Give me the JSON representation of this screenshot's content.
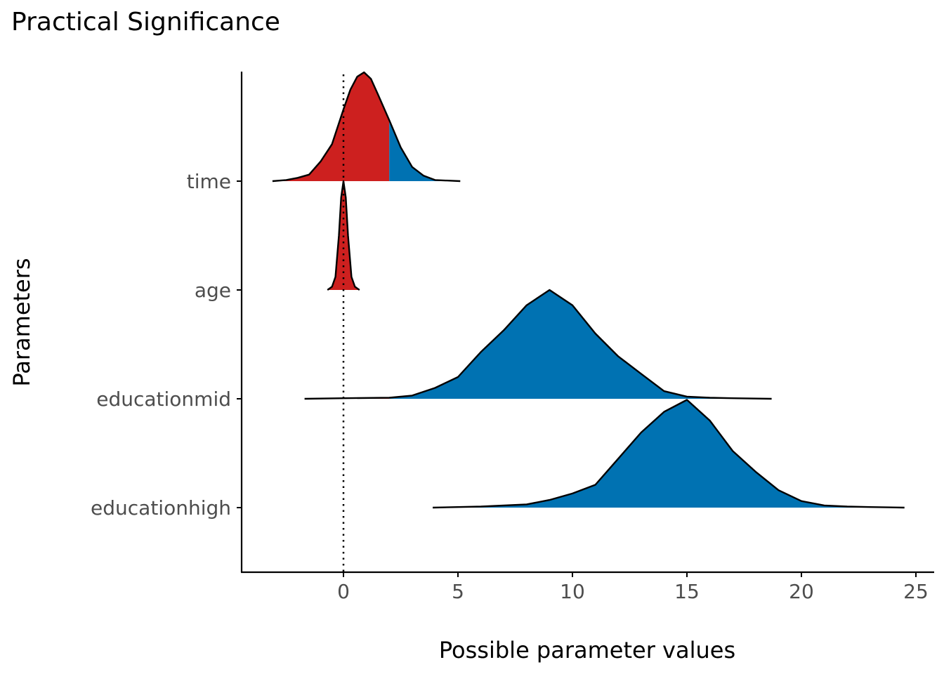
{
  "chart_data": {
    "type": "ridgeline",
    "title": "Practical Significance",
    "xlabel": "Possible parameter values",
    "ylabel": "Parameters",
    "xlim": [
      -4.5,
      25.8
    ],
    "x_ticks": [
      0,
      5,
      10,
      15,
      20,
      25
    ],
    "reference_line": {
      "x": 0,
      "style": "dotted"
    },
    "grid": false,
    "legend": "none",
    "fill_colors": {
      "within_rope": "#cd201f",
      "significant": "#0072b2"
    },
    "series": [
      {
        "name": "time",
        "fill_threshold": 2,
        "density": [
          [
            -3.1,
            0
          ],
          [
            -2.5,
            0.01
          ],
          [
            -2,
            0.03
          ],
          [
            -1.5,
            0.06
          ],
          [
            -1,
            0.18
          ],
          [
            -0.5,
            0.34
          ],
          [
            0,
            0.66
          ],
          [
            0.3,
            0.84
          ],
          [
            0.6,
            0.96
          ],
          [
            0.9,
            1.0
          ],
          [
            1.2,
            0.94
          ],
          [
            1.5,
            0.8
          ],
          [
            2,
            0.56
          ],
          [
            2.5,
            0.31
          ],
          [
            3,
            0.13
          ],
          [
            3.5,
            0.05
          ],
          [
            4,
            0.01
          ],
          [
            5.1,
            0
          ]
        ]
      },
      {
        "name": "age",
        "fill_threshold": 2,
        "density": [
          [
            -0.7,
            0
          ],
          [
            -0.5,
            0.03
          ],
          [
            -0.35,
            0.12
          ],
          [
            -0.2,
            0.5
          ],
          [
            -0.1,
            0.85
          ],
          [
            0,
            1.0
          ],
          [
            0.1,
            0.85
          ],
          [
            0.2,
            0.5
          ],
          [
            0.35,
            0.12
          ],
          [
            0.5,
            0.03
          ],
          [
            0.7,
            0
          ]
        ]
      },
      {
        "name": "educationmid",
        "fill_threshold": 2,
        "density": [
          [
            -1.7,
            0
          ],
          [
            0,
            0.005
          ],
          [
            2,
            0.01
          ],
          [
            3,
            0.03
          ],
          [
            4,
            0.1
          ],
          [
            5,
            0.2
          ],
          [
            6,
            0.43
          ],
          [
            7,
            0.63
          ],
          [
            8,
            0.86
          ],
          [
            9,
            1.0
          ],
          [
            10,
            0.86
          ],
          [
            11,
            0.6
          ],
          [
            12,
            0.39
          ],
          [
            13,
            0.23
          ],
          [
            14,
            0.07
          ],
          [
            15,
            0.02
          ],
          [
            16,
            0.01
          ],
          [
            17,
            0.005
          ],
          [
            18.7,
            0
          ]
        ]
      },
      {
        "name": "educationhigh",
        "fill_threshold": 2,
        "density": [
          [
            3.9,
            0
          ],
          [
            6,
            0.01
          ],
          [
            8,
            0.03
          ],
          [
            9,
            0.07
          ],
          [
            10,
            0.13
          ],
          [
            11,
            0.21
          ],
          [
            12,
            0.45
          ],
          [
            13,
            0.69
          ],
          [
            14,
            0.88
          ],
          [
            15,
            0.99
          ],
          [
            16,
            0.8
          ],
          [
            17,
            0.52
          ],
          [
            18,
            0.33
          ],
          [
            19,
            0.16
          ],
          [
            20,
            0.06
          ],
          [
            21,
            0.02
          ],
          [
            22,
            0.01
          ],
          [
            23,
            0.005
          ],
          [
            24.5,
            0
          ]
        ]
      }
    ]
  }
}
